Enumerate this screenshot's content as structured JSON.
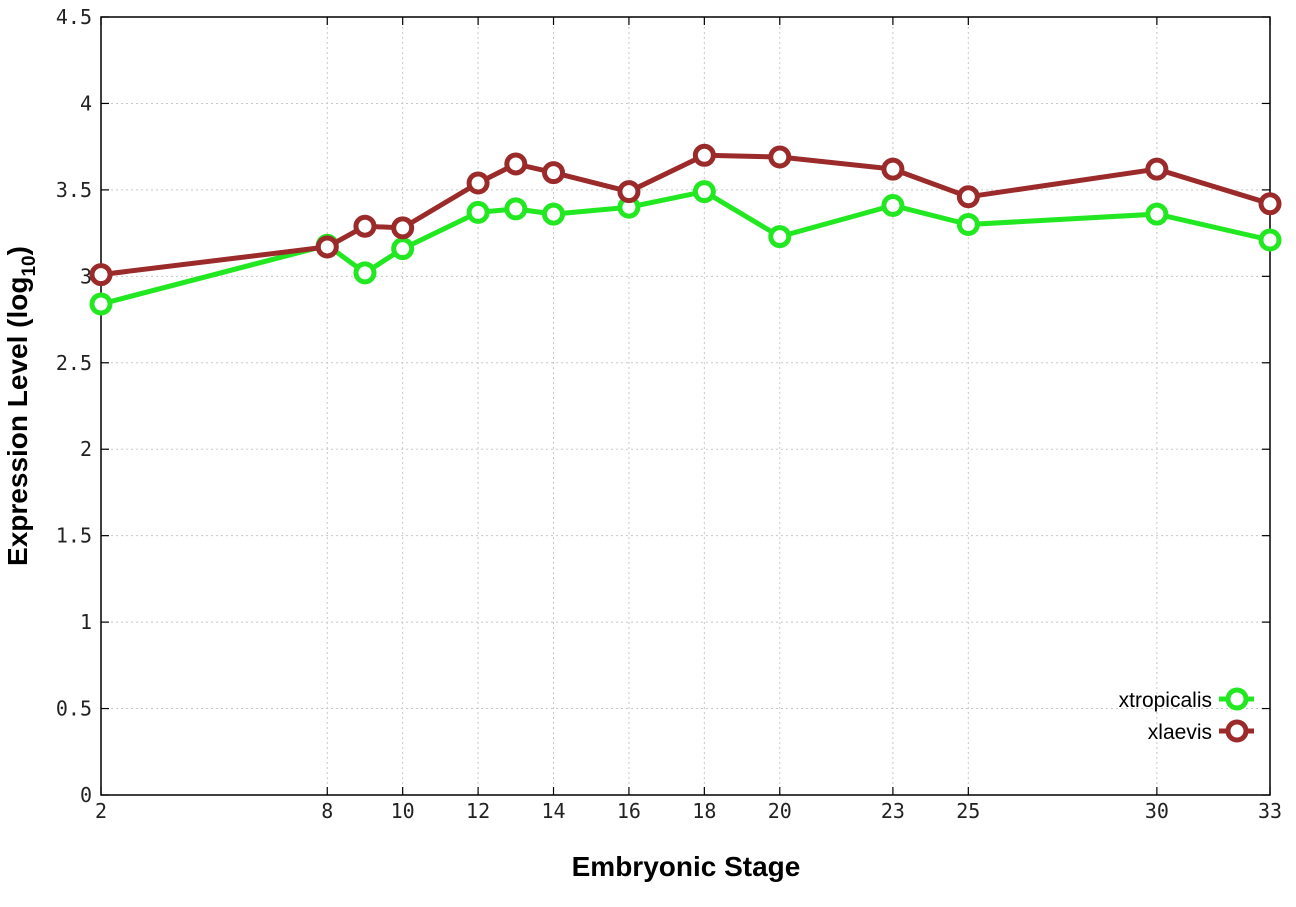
{
  "chart_data": {
    "type": "line",
    "title": "",
    "xlabel": "Embryonic Stage",
    "ylabel_main": "Expression Level (log",
    "ylabel_sub": "10",
    "ylabel_close": ")",
    "xlim": [
      2,
      33
    ],
    "ylim": [
      0,
      4.5
    ],
    "x_ticks": [
      2,
      8,
      10,
      12,
      14,
      16,
      18,
      20,
      23,
      25,
      30,
      33
    ],
    "y_ticks": [
      "0",
      "0.5",
      "1",
      "1.5",
      "2",
      "2.5",
      "3",
      "3.5",
      "4",
      "4.5"
    ],
    "x": [
      2,
      8,
      9,
      10,
      12,
      13,
      14,
      16,
      18,
      20,
      23,
      25,
      30,
      33
    ],
    "grid": true,
    "legend_position": "bottom-right",
    "series": [
      {
        "name": "xtropicalis",
        "color": "#22e822",
        "values": [
          2.84,
          3.18,
          3.02,
          3.16,
          3.37,
          3.39,
          3.36,
          3.4,
          3.49,
          3.23,
          3.41,
          3.3,
          3.36,
          3.21
        ]
      },
      {
        "name": "xlaevis",
        "color": "#9b2a2a",
        "values": [
          3.01,
          3.17,
          3.29,
          3.28,
          3.54,
          3.65,
          3.6,
          3.49,
          3.7,
          3.69,
          3.62,
          3.46,
          3.62,
          3.42
        ]
      }
    ]
  }
}
